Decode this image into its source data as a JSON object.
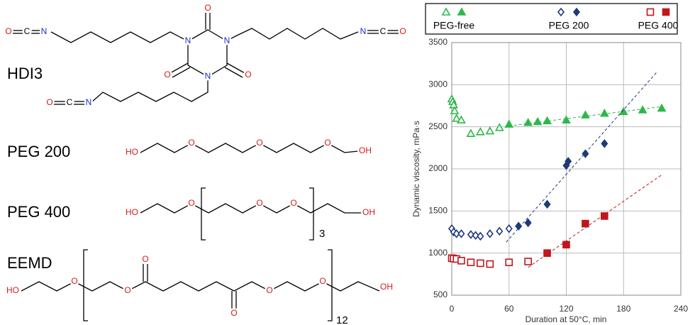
{
  "structures": [
    {
      "label": "HDI3",
      "atoms": [
        "O",
        "C",
        "N",
        "N",
        "N",
        "N",
        "O",
        "O",
        "O",
        "N",
        "C",
        "O",
        "O",
        "C",
        "N"
      ]
    },
    {
      "label": "PEG 200",
      "atoms": [
        "HO",
        "O",
        "O",
        "O",
        "OH"
      ]
    },
    {
      "label": "PEG 400",
      "atoms": [
        "HO",
        "O",
        "O",
        "O",
        "OH"
      ],
      "repeat": "3"
    },
    {
      "label": "EEMD",
      "atoms": [
        "HO",
        "O",
        "O",
        "O",
        "O",
        "O",
        "O",
        "OH"
      ],
      "repeat": "12"
    }
  ],
  "chart_data": {
    "type": "scatter",
    "xlabel": "Duration at 50°C, min",
    "ylabel": "Dynamic viscosity, mPa·s",
    "xlim": [
      0,
      240
    ],
    "xticks": [
      0,
      60,
      120,
      180,
      240
    ],
    "ylim": [
      500,
      3500
    ],
    "yticks": [
      500,
      1000,
      1500,
      2000,
      2500,
      3000,
      3500
    ],
    "grid": true,
    "legend": "top",
    "series": [
      {
        "name": "PEG-free",
        "color": "#2db84a",
        "marker": "triangle",
        "x": [
          0,
          1,
          2,
          3,
          5,
          10,
          20,
          30,
          40,
          50,
          60,
          80,
          90,
          100,
          120,
          140,
          160,
          180,
          200,
          220
        ],
        "values": [
          2830,
          2800,
          2760,
          2690,
          2600,
          2580,
          2420,
          2440,
          2450,
          2490,
          2530,
          2550,
          2560,
          2570,
          2580,
          2640,
          2660,
          2680,
          2700,
          2720
        ],
        "filled": [
          false,
          false,
          false,
          false,
          false,
          false,
          false,
          false,
          false,
          false,
          true,
          true,
          true,
          true,
          true,
          true,
          true,
          true,
          true,
          true
        ],
        "trend": {
          "x": [
            60,
            220
          ],
          "values": [
            2510,
            2740
          ]
        }
      },
      {
        "name": "PEG 200",
        "color": "#1f3a7a",
        "marker": "diamond",
        "x": [
          0,
          2,
          5,
          10,
          20,
          25,
          30,
          40,
          50,
          60,
          70,
          80,
          100,
          120,
          122,
          140,
          160
        ],
        "values": [
          1290,
          1250,
          1230,
          1230,
          1220,
          1210,
          1200,
          1230,
          1260,
          1290,
          1320,
          1360,
          1580,
          2040,
          2090,
          2180,
          2300
        ],
        "filled": [
          false,
          false,
          false,
          false,
          false,
          false,
          false,
          false,
          false,
          false,
          true,
          true,
          true,
          true,
          true,
          true,
          true
        ],
        "trend": {
          "x": [
            57,
            215
          ],
          "values": [
            1130,
            3150
          ]
        }
      },
      {
        "name": "PEG 400",
        "color": "#c0161c",
        "marker": "square",
        "x": [
          0,
          2,
          5,
          10,
          20,
          30,
          40,
          60,
          80,
          100,
          120,
          140,
          160
        ],
        "values": [
          940,
          935,
          930,
          910,
          890,
          880,
          870,
          890,
          900,
          1000,
          1100,
          1350,
          1440
        ],
        "filled": [
          false,
          false,
          false,
          false,
          false,
          false,
          false,
          false,
          false,
          true,
          true,
          true,
          true
        ],
        "trend": {
          "x": [
            80,
            220
          ],
          "values": [
            830,
            1930
          ]
        }
      }
    ]
  }
}
